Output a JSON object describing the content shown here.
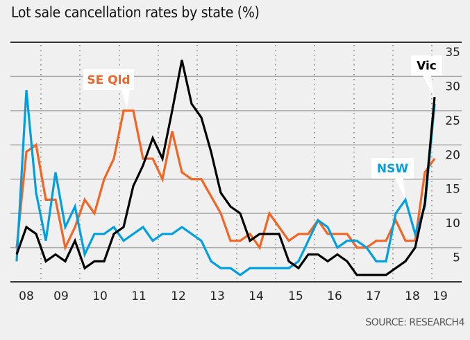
{
  "chart_data": {
    "type": "line",
    "title": "Lot sale cancellation rates by state (%)",
    "source": "SOURCE: RESEARCH4",
    "xlabel": "",
    "ylabel": "",
    "ylim": [
      0,
      35
    ],
    "yticks": [
      5,
      10,
      15,
      20,
      25,
      30,
      35
    ],
    "x_tick_labels": [
      "08",
      "09",
      "10",
      "11",
      "12",
      "13",
      "14",
      "15",
      "16",
      "17",
      "18",
      "19"
    ],
    "x_frequency": "quarterly",
    "grid": true,
    "series": [
      {
        "name": "SE Qld",
        "color": "#f26522",
        "values": [
          5,
          19,
          20,
          12,
          12,
          5,
          8,
          12,
          10,
          15,
          18,
          25,
          25,
          18,
          18,
          15,
          22,
          16,
          15,
          15,
          12.5,
          10,
          6,
          6,
          7,
          5,
          10,
          8,
          6,
          7,
          7,
          9,
          7,
          7,
          7,
          5,
          5,
          6,
          6,
          9,
          6,
          6,
          16,
          18
        ]
      },
      {
        "name": "NSW",
        "color": "#00a0e0",
        "values": [
          3,
          28,
          13,
          6,
          16,
          8,
          11,
          4,
          7,
          7,
          8,
          6,
          7,
          8,
          6,
          7,
          7,
          8,
          7,
          6,
          3,
          2,
          2,
          1,
          2,
          2,
          2,
          2,
          2,
          3,
          6,
          9,
          8,
          5,
          6,
          6,
          5,
          3,
          3,
          10,
          12,
          7,
          11,
          26
        ]
      },
      {
        "name": "Vic",
        "color": "#000000",
        "values": [
          4,
          8,
          7,
          3,
          4,
          3,
          6,
          2,
          3,
          3,
          7,
          8,
          14,
          17,
          21,
          18,
          25,
          32.4,
          26,
          24,
          19,
          13,
          11,
          10,
          6,
          7,
          7,
          7,
          3,
          2,
          4,
          4,
          3,
          4,
          3,
          1,
          1,
          1,
          1,
          2,
          3,
          5,
          11.5,
          27
        ]
      }
    ],
    "annotations": [
      {
        "text": "SE Qld",
        "series": "SE Qld"
      },
      {
        "text": "NSW",
        "series": "NSW"
      },
      {
        "text": "Vic",
        "series": "Vic"
      }
    ]
  }
}
